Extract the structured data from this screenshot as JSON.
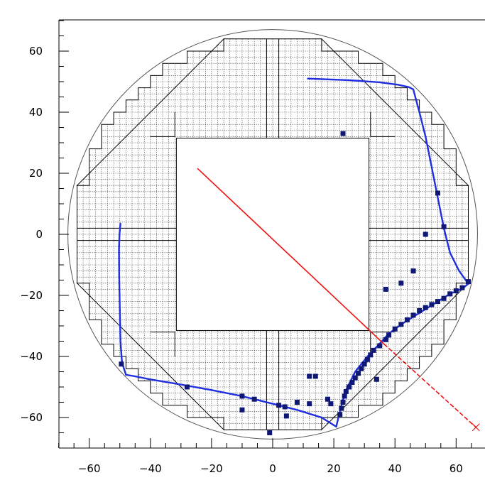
{
  "chart_data": {
    "type": "scatter",
    "title": "",
    "xlabel": "",
    "ylabel": "",
    "xlim": [
      -70,
      68
    ],
    "ylim": [
      -70,
      70
    ],
    "xticks": [
      -60,
      -40,
      -20,
      0,
      20,
      40,
      60
    ],
    "yticks": [
      -60,
      -40,
      -20,
      0,
      20,
      40,
      60
    ],
    "xtick_labels": [
      "−60",
      "−40",
      "−20",
      "0",
      "20",
      "40",
      "60"
    ],
    "ytick_labels": [
      "−60",
      "−40",
      "−20",
      "0",
      "20",
      "40",
      "60"
    ],
    "grid": false,
    "detector": {
      "outer_circle_radius": 67,
      "inner_square": [
        -31.5,
        31.5,
        -31.5,
        31.5
      ],
      "quadrant_split_x": 2,
      "quadrant_split_y": 2,
      "cell_size": 2,
      "outline_color": "#000000"
    },
    "series": [
      {
        "kind": "curve",
        "color": "#1f2fe0",
        "points": [
          [
            11.5,
            51.0
          ],
          [
            25,
            50.5
          ],
          [
            35,
            49.8
          ],
          [
            41,
            49.0
          ],
          [
            44.5,
            48.2
          ],
          [
            46,
            47.5
          ],
          [
            48,
            40
          ],
          [
            50,
            32
          ],
          [
            52,
            22
          ],
          [
            54,
            12
          ],
          [
            56,
            2
          ],
          [
            58,
            -6
          ],
          [
            61,
            -12
          ],
          [
            64,
            -16.2
          ]
        ]
      },
      {
        "kind": "curve",
        "color": "#1f2fe0",
        "points": [
          [
            64,
            -16.2
          ],
          [
            62,
            -17.8
          ],
          [
            58,
            -19.5
          ],
          [
            54,
            -22
          ],
          [
            50,
            -24.5
          ],
          [
            46,
            -27
          ],
          [
            42,
            -29.5
          ],
          [
            38,
            -32.5
          ],
          [
            35,
            -35.8
          ],
          [
            31,
            -40
          ],
          [
            27,
            -45
          ],
          [
            24,
            -51
          ],
          [
            22.5,
            -56
          ],
          [
            21.5,
            -60
          ],
          [
            20.8,
            -63
          ]
        ]
      },
      {
        "kind": "curve",
        "color": "#1f2fe0",
        "points": [
          [
            20.8,
            -63
          ],
          [
            16,
            -60
          ],
          [
            8,
            -57.5
          ],
          [
            0,
            -55.5
          ],
          [
            -10,
            -53
          ],
          [
            -20,
            -51
          ],
          [
            -30,
            -49.2
          ],
          [
            -40,
            -47.5
          ],
          [
            -45,
            -46.5
          ],
          [
            -48,
            -46
          ]
        ]
      },
      {
        "kind": "curve",
        "color": "#1f2fe0",
        "points": [
          [
            -48,
            -46
          ],
          [
            -49.3,
            -42
          ],
          [
            -49.8,
            -35
          ],
          [
            -50,
            -25
          ],
          [
            -50.2,
            -15
          ],
          [
            -50.3,
            -5
          ],
          [
            -50.1,
            0
          ],
          [
            -49.8,
            3.5
          ]
        ]
      },
      {
        "kind": "line",
        "color": "#ee1111",
        "style": "solid",
        "points": [
          [
            -24.5,
            21.5
          ],
          [
            36.5,
            -36.0
          ]
        ]
      },
      {
        "kind": "line",
        "color": "#ee1111",
        "style": "dashed",
        "points": [
          [
            36.5,
            -36.0
          ],
          [
            66.5,
            -63.2
          ]
        ]
      },
      {
        "kind": "marker",
        "color": "#ee1111",
        "shape": "x",
        "points": [
          [
            66.5,
            -63.2
          ]
        ]
      },
      {
        "kind": "hits",
        "color": "#101875",
        "points": [
          [
            23,
            33
          ],
          [
            50,
            0
          ],
          [
            46,
            -12
          ],
          [
            42,
            -16
          ],
          [
            37,
            -18
          ],
          [
            54,
            13.5
          ],
          [
            56,
            2.5
          ],
          [
            64,
            -15.5
          ],
          [
            62,
            -17.5
          ],
          [
            60,
            -18.5
          ],
          [
            58,
            -19.5
          ],
          [
            56,
            -21
          ],
          [
            54,
            -22
          ],
          [
            52,
            -23
          ],
          [
            50,
            -24
          ],
          [
            48,
            -25
          ],
          [
            46,
            -26.5
          ],
          [
            44,
            -28
          ],
          [
            42,
            -29.5
          ],
          [
            40,
            -31
          ],
          [
            38,
            -33
          ],
          [
            37,
            -34.5
          ],
          [
            35,
            -36.5
          ],
          [
            33,
            -38
          ],
          [
            32,
            -39.5
          ],
          [
            31,
            -41
          ],
          [
            30,
            -42.5
          ],
          [
            29,
            -44
          ],
          [
            28,
            -45.5
          ],
          [
            27,
            -47
          ],
          [
            26,
            -48.5
          ],
          [
            25,
            -50
          ],
          [
            24,
            -51.5
          ],
          [
            23.5,
            -53
          ],
          [
            23,
            -55
          ],
          [
            22.5,
            -57
          ],
          [
            22,
            -59
          ],
          [
            34,
            -47.5
          ],
          [
            14,
            -46.5
          ],
          [
            12,
            -46.5
          ],
          [
            18,
            -54
          ],
          [
            19,
            -55.5
          ],
          [
            12,
            -55.5
          ],
          [
            8,
            -55
          ],
          [
            4,
            -56.5
          ],
          [
            2,
            -56
          ],
          [
            4.5,
            -59.5
          ],
          [
            -6,
            -54
          ],
          [
            -10,
            -53
          ],
          [
            -10,
            -57.5
          ],
          [
            -28,
            -50
          ],
          [
            -49.5,
            -42.5
          ],
          [
            -1,
            -65
          ]
        ]
      }
    ]
  }
}
